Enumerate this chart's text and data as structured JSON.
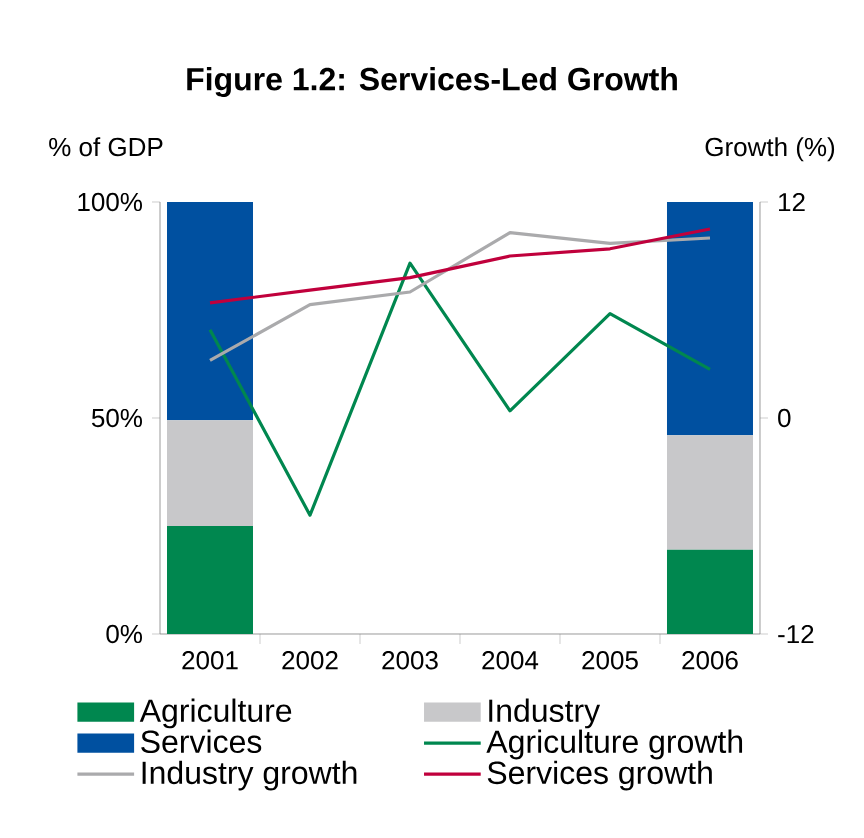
{
  "chart_data": {
    "type": "bar",
    "title": "Figure 1.2: Services-Led Growth",
    "ylabel": "% of GDP",
    "y2label": "Growth (%)",
    "categories": [
      "2001",
      "2002",
      "2003",
      "2004",
      "2005",
      "2006"
    ],
    "stacked": true,
    "series": [
      {
        "name": "Agriculture",
        "color": "#00874f",
        "values": [
          25,
          null,
          null,
          null,
          null,
          19.5
        ]
      },
      {
        "name": "Industry",
        "color": "#c8c8ca",
        "values": [
          24.5,
          null,
          null,
          null,
          null,
          26.5
        ]
      },
      {
        "name": "Services",
        "color": "#0050a0",
        "values": [
          50.5,
          null,
          null,
          null,
          null,
          54
        ]
      },
      {
        "name": "Agriculture growth",
        "type": "line",
        "axis": "y2",
        "color": "#00874f",
        "values": [
          4.9,
          -5.4,
          8.6,
          0.4,
          5.8,
          2.7
        ]
      },
      {
        "name": "Industry growth",
        "type": "line",
        "axis": "y2",
        "color": "#aaaaac",
        "values": [
          3.2,
          6.3,
          7.0,
          10.3,
          9.7,
          10.0
        ]
      },
      {
        "name": "Services growth",
        "type": "line",
        "axis": "y2",
        "color": "#c0003c",
        "values": [
          6.4,
          7.1,
          7.8,
          9.0,
          9.4,
          10.5
        ]
      }
    ],
    "ylim": [
      0,
      100
    ],
    "yticks": [
      {
        "value": 0,
        "label": "0%"
      },
      {
        "value": 50,
        "label": "50%"
      },
      {
        "value": 100,
        "label": "100%"
      }
    ],
    "y2lim": [
      -12,
      12
    ],
    "y2ticks": [
      -12,
      0,
      12
    ],
    "legend": "bottom",
    "grid": false,
    "marker": "none",
    "line_style": "solid"
  }
}
